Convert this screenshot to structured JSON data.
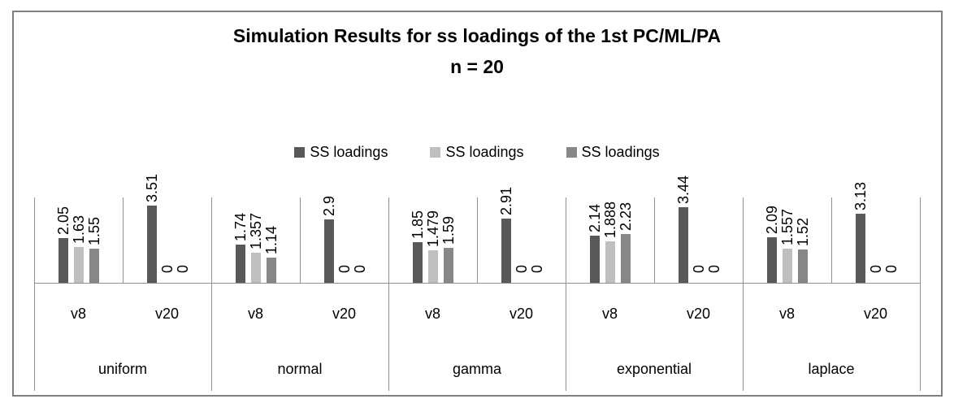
{
  "figure": {
    "background": "#ffffff",
    "border_color": "#808080"
  },
  "chart_data": {
    "type": "bar",
    "title": "Simulation Results for ss loadings of the 1st PC/ML/PA",
    "subtitle": "n = 20",
    "legend": {
      "position": "center-above-plot",
      "entries": [
        "SS loadings",
        "SS loadings",
        "SS loadings"
      ]
    },
    "series": [
      {
        "name": "SS loadings",
        "color": "#595959"
      },
      {
        "name": "SS loadings",
        "color": "#bfbfbf"
      },
      {
        "name": "SS loadings",
        "color": "#878787"
      }
    ],
    "axis": {
      "y_axis_visible": false,
      "ylim": [
        0,
        4
      ],
      "grid": false,
      "x_levels": [
        "variable-count",
        "distribution"
      ]
    },
    "groups": [
      {
        "label": "uniform",
        "subgroups": [
          {
            "label": "v8",
            "values": [
              2.05,
              1.63,
              1.55
            ],
            "value_labels": [
              "2.05",
              "1.63",
              "1.55"
            ]
          },
          {
            "label": "v20",
            "values": [
              3.51,
              0,
              0
            ],
            "value_labels": [
              "3.51",
              "0",
              "0"
            ]
          }
        ]
      },
      {
        "label": "normal",
        "subgroups": [
          {
            "label": "v8",
            "values": [
              1.74,
              1.357,
              1.14
            ],
            "value_labels": [
              "1.74",
              "1.357",
              "1.14"
            ]
          },
          {
            "label": "v20",
            "values": [
              2.9,
              0,
              0
            ],
            "value_labels": [
              "2.9",
              "0",
              "0"
            ]
          }
        ]
      },
      {
        "label": "gamma",
        "subgroups": [
          {
            "label": "v8",
            "values": [
              1.85,
              1.479,
              1.59
            ],
            "value_labels": [
              "1.85",
              "1.479",
              "1.59"
            ]
          },
          {
            "label": "v20",
            "values": [
              2.91,
              0,
              0
            ],
            "value_labels": [
              "2.91",
              "0",
              "0"
            ]
          }
        ]
      },
      {
        "label": "exponential",
        "subgroups": [
          {
            "label": "v8",
            "values": [
              2.14,
              1.888,
              2.23
            ],
            "value_labels": [
              "2.14",
              "1.888",
              "2.23"
            ]
          },
          {
            "label": "v20",
            "values": [
              3.44,
              0,
              0
            ],
            "value_labels": [
              "3.44",
              "0",
              "0"
            ]
          }
        ]
      },
      {
        "label": "laplace",
        "subgroups": [
          {
            "label": "v8",
            "values": [
              2.09,
              1.557,
              1.52
            ],
            "value_labels": [
              "2.09",
              "1.557",
              "1.52"
            ]
          },
          {
            "label": "v20",
            "values": [
              3.13,
              0,
              0
            ],
            "value_labels": [
              "3.13",
              "0",
              "0"
            ]
          }
        ]
      }
    ]
  }
}
